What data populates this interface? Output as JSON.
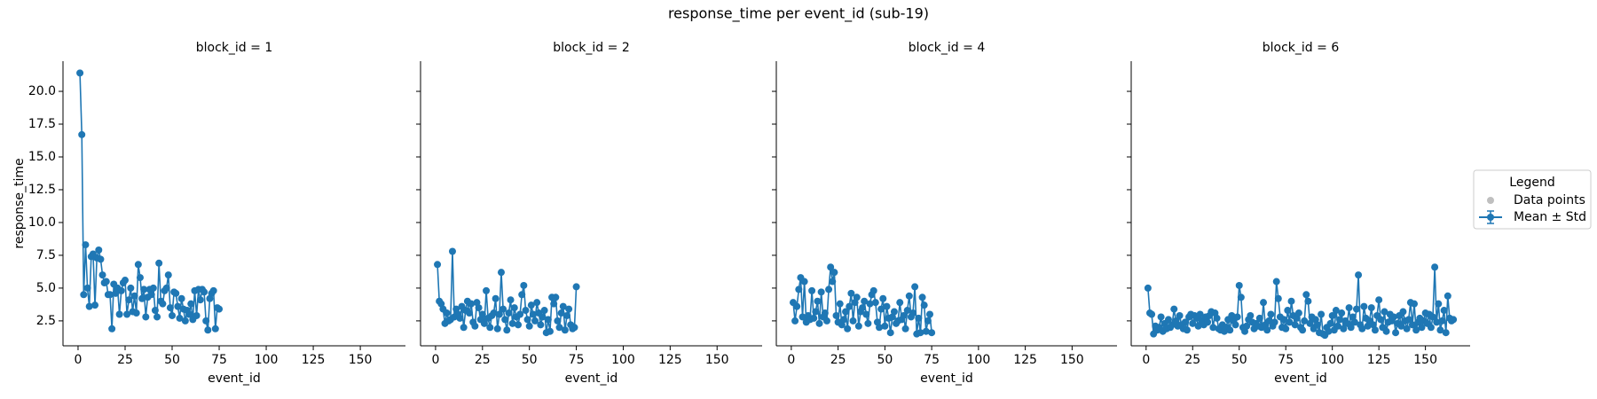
{
  "title": "response_time per event_id (sub-19)",
  "legend": {
    "title": "Legend",
    "entries": [
      {
        "name": "Data points",
        "color": "#bfbfbf"
      },
      {
        "name": "Mean ± Std",
        "color": "#1f77b4"
      }
    ]
  },
  "chart_data": [
    {
      "type": "line",
      "title": "block_id = 1",
      "xlabel": "event_id",
      "ylabel": "response_time",
      "color": "#1f77b4",
      "x": [
        1,
        2,
        3,
        4,
        5,
        6,
        7,
        8,
        9,
        10,
        11,
        12,
        13,
        14,
        15,
        16,
        17,
        18,
        19,
        20,
        21,
        22,
        23,
        24,
        25,
        26,
        27,
        28,
        29,
        30,
        31,
        32,
        33,
        34,
        35,
        36,
        37,
        38,
        39,
        40,
        41,
        42,
        43,
        44,
        45,
        46,
        47,
        48,
        49,
        50,
        51,
        52,
        53,
        54,
        55,
        56,
        57,
        58,
        59,
        60,
        61,
        62,
        63,
        64,
        65,
        66,
        67,
        68,
        69,
        70,
        71,
        72,
        73,
        74,
        75
      ],
      "values": [
        21.4,
        16.7,
        4.5,
        8.3,
        5.0,
        3.6,
        7.4,
        7.6,
        3.7,
        7.3,
        7.9,
        7.2,
        6.0,
        5.4,
        5.5,
        4.5,
        4.5,
        1.9,
        5.3,
        4.6,
        5.0,
        3.0,
        4.8,
        5.4,
        5.6,
        3.0,
        4.1,
        5.0,
        3.2,
        4.4,
        3.1,
        6.8,
        5.8,
        4.2,
        4.9,
        2.8,
        4.3,
        4.9,
        4.5,
        5.0,
        3.3,
        2.8,
        6.9,
        4.0,
        3.8,
        4.8,
        5.0,
        6.0,
        3.5,
        2.9,
        4.7,
        4.6,
        3.6,
        2.7,
        4.2,
        3.4,
        2.5,
        3.3,
        3.0,
        3.8,
        2.6,
        4.8,
        2.9,
        4.9,
        4.1,
        4.9,
        4.7,
        2.5,
        1.8,
        4.2,
        4.6,
        4.8,
        1.9,
        3.5,
        3.4
      ],
      "xlim": [
        -8,
        174
      ],
      "ylim": [
        0.6,
        22.3
      ],
      "xticks": [
        0,
        25,
        50,
        75,
        100,
        125,
        150
      ],
      "yticks": [
        2.5,
        {
          "value": 5,
          "label": "5.0"
        },
        7.5,
        {
          "value": 10,
          "label": "10.0"
        },
        12.5,
        {
          "value": 15,
          "label": "15.0"
        },
        17.5,
        {
          "value": 20,
          "label": "20.0"
        }
      ]
    },
    {
      "type": "line",
      "title": "block_id = 2",
      "xlabel": "event_id",
      "color": "#1f77b4",
      "x": [
        1,
        2,
        3,
        4,
        5,
        6,
        7,
        8,
        9,
        10,
        11,
        12,
        13,
        14,
        15,
        16,
        17,
        18,
        19,
        20,
        21,
        22,
        23,
        24,
        25,
        26,
        27,
        28,
        29,
        30,
        31,
        32,
        33,
        34,
        35,
        36,
        37,
        38,
        39,
        40,
        41,
        42,
        43,
        44,
        45,
        46,
        47,
        48,
        49,
        50,
        51,
        52,
        53,
        54,
        55,
        56,
        57,
        58,
        59,
        60,
        61,
        62,
        63,
        64,
        65,
        66,
        67,
        68,
        69,
        70,
        71,
        72,
        73,
        74,
        75
      ],
      "values": [
        6.8,
        4.0,
        3.8,
        3.4,
        2.3,
        3.1,
        2.5,
        2.6,
        7.8,
        2.8,
        3.4,
        3.0,
        2.7,
        3.6,
        2.0,
        3.3,
        4.0,
        3.1,
        3.8,
        2.4,
        2.1,
        3.9,
        3.5,
        2.6,
        3.0,
        2.3,
        4.8,
        2.7,
        2.0,
        2.9,
        3.1,
        4.2,
        1.9,
        3.0,
        6.2,
        3.4,
        2.6,
        1.8,
        3.1,
        4.1,
        2.3,
        3.5,
        2.8,
        2.2,
        3.0,
        4.5,
        5.2,
        3.3,
        2.6,
        2.1,
        3.7,
        3.0,
        2.5,
        3.9,
        3.1,
        2.2,
        2.8,
        3.3,
        1.6,
        2.6,
        1.7,
        4.3,
        3.8,
        4.3,
        2.5,
        2.0,
        3.1,
        3.6,
        1.8,
        2.9,
        3.4,
        2.2,
        1.9,
        2.0,
        5.1
      ],
      "xlim": [
        -8,
        174
      ],
      "ylim": [
        0.6,
        22.3
      ],
      "xticks": [
        0,
        25,
        50,
        75,
        100,
        125,
        150
      ],
      "yticks": [
        2.5,
        5,
        7.5,
        10,
        12.5,
        15,
        17.5,
        20
      ]
    },
    {
      "type": "line",
      "title": "block_id = 4",
      "xlabel": "event_id",
      "color": "#1f77b4",
      "x": [
        1,
        2,
        3,
        4,
        5,
        6,
        7,
        8,
        9,
        10,
        11,
        12,
        13,
        14,
        15,
        16,
        17,
        18,
        19,
        20,
        21,
        22,
        23,
        24,
        25,
        26,
        27,
        28,
        29,
        30,
        31,
        32,
        33,
        34,
        35,
        36,
        37,
        38,
        39,
        40,
        41,
        42,
        43,
        44,
        45,
        46,
        47,
        48,
        49,
        50,
        51,
        52,
        53,
        54,
        55,
        56,
        57,
        58,
        59,
        60,
        61,
        62,
        63,
        64,
        65,
        66,
        67,
        68,
        69,
        70,
        71,
        72,
        73,
        74,
        75
      ],
      "values": [
        3.9,
        2.5,
        3.6,
        4.9,
        5.8,
        2.8,
        5.5,
        2.4,
        2.9,
        2.6,
        4.8,
        2.7,
        3.2,
        4.0,
        2.3,
        4.7,
        2.8,
        3.1,
        2.5,
        4.9,
        6.6,
        5.5,
        6.2,
        2.9,
        2.4,
        3.8,
        2.2,
        2.6,
        3.2,
        1.9,
        3.6,
        4.6,
        2.5,
        3.9,
        4.3,
        2.1,
        3.2,
        3.5,
        4.0,
        3.0,
        2.3,
        3.8,
        4.5,
        4.8,
        3.9,
        2.4,
        2.0,
        3.4,
        4.2,
        2.1,
        3.6,
        2.7,
        1.6,
        2.8,
        3.2,
        2.3,
        2.5,
        3.9,
        2.6,
        2.9,
        1.9,
        3.3,
        4.4,
        2.8,
        3.1,
        5.1,
        1.5,
        2.7,
        1.6,
        4.3,
        3.7,
        1.7,
        2.5,
        3.0,
        1.6
      ],
      "xlim": [
        -8,
        174
      ],
      "ylim": [
        0.6,
        22.3
      ],
      "xticks": [
        0,
        25,
        50,
        75,
        100,
        125,
        150
      ],
      "yticks": [
        2.5,
        5,
        7.5,
        10,
        12.5,
        15,
        17.5,
        20
      ]
    },
    {
      "type": "line",
      "title": "block_id = 6",
      "xlabel": "event_id",
      "color": "#1f77b4",
      "x": [
        1,
        2,
        3,
        4,
        5,
        6,
        7,
        8,
        9,
        10,
        11,
        12,
        13,
        14,
        15,
        16,
        17,
        18,
        19,
        20,
        21,
        22,
        23,
        24,
        25,
        26,
        27,
        28,
        29,
        30,
        31,
        32,
        33,
        34,
        35,
        36,
        37,
        38,
        39,
        40,
        41,
        42,
        43,
        44,
        45,
        46,
        47,
        48,
        49,
        50,
        51,
        52,
        53,
        54,
        55,
        56,
        57,
        58,
        59,
        60,
        61,
        62,
        63,
        64,
        65,
        66,
        67,
        68,
        69,
        70,
        71,
        72,
        73,
        74,
        75,
        76,
        77,
        78,
        79,
        80,
        81,
        82,
        83,
        84,
        85,
        86,
        87,
        88,
        89,
        90,
        91,
        92,
        93,
        94,
        95,
        96,
        97,
        98,
        99,
        100,
        101,
        102,
        103,
        104,
        105,
        106,
        107,
        108,
        109,
        110,
        111,
        112,
        113,
        114,
        115,
        116,
        117,
        118,
        119,
        120,
        121,
        122,
        123,
        124,
        125,
        126,
        127,
        128,
        129,
        130,
        131,
        132,
        133,
        134,
        135,
        136,
        137,
        138,
        139,
        140,
        141,
        142,
        143,
        144,
        145,
        146,
        147,
        148,
        149,
        150,
        151,
        152,
        153,
        154,
        155,
        156,
        157,
        158,
        159,
        160,
        161,
        162,
        163,
        164,
        165
      ],
      "values": [
        5.0,
        3.1,
        3.0,
        1.5,
        2.1,
        1.8,
        2.0,
        2.8,
        1.7,
        2.3,
        1.9,
        2.6,
        2.0,
        2.2,
        3.4,
        2.5,
        2.1,
        2.9,
        2.2,
        1.9,
        2.4,
        1.8,
        2.8,
        3.0,
        2.3,
        2.9,
        2.7,
        2.1,
        3.0,
        2.5,
        2.2,
        2.8,
        2.4,
        2.9,
        3.2,
        2.0,
        3.1,
        2.7,
        1.9,
        1.8,
        2.2,
        1.7,
        2.0,
        2.6,
        1.8,
        2.9,
        2.5,
        2.2,
        2.8,
        5.2,
        4.3,
        2.0,
        1.7,
        2.1,
        2.6,
        2.9,
        2.4,
        1.9,
        2.3,
        2.1,
        2.7,
        2.0,
        3.9,
        2.2,
        1.8,
        2.5,
        3.0,
        2.1,
        2.4,
        5.5,
        4.2,
        2.8,
        2.0,
        2.6,
        1.9,
        3.3,
        2.4,
        4.0,
        2.9,
        2.2,
        2.7,
        3.1,
        2.0,
        1.8,
        2.5,
        4.5,
        4.0,
        2.3,
        2.8,
        1.9,
        2.6,
        2.2,
        1.6,
        3.0,
        1.5,
        1.4,
        2.0,
        1.7,
        2.3,
        2.9,
        1.8,
        3.3,
        2.1,
        2.6,
        3.1,
        1.9,
        2.5,
        2.3,
        3.5,
        2.0,
        2.8,
        2.4,
        3.4,
        6.0,
        2.2,
        1.9,
        3.6,
        2.7,
        2.1,
        2.5,
        3.5,
        2.2,
        1.8,
        2.9,
        4.1,
        2.6,
        2.0,
        3.2,
        1.7,
        2.4,
        3.0,
        2.5,
        2.8,
        1.6,
        2.3,
        2.9,
        2.1,
        3.2,
        2.5,
        1.9,
        2.6,
        3.9,
        2.2,
        3.8,
        1.8,
        2.4,
        2.7,
        2.0,
        2.5,
        3.1,
        2.3,
        3.0,
        2.0,
        2.8,
        6.6,
        2.4,
        3.8,
        1.8,
        2.5,
        3.3,
        1.6,
        4.4,
        2.7,
        2.5,
        2.6
      ],
      "xlim": [
        -8,
        174
      ],
      "ylim": [
        0.6,
        22.3
      ],
      "xticks": [
        0,
        25,
        50,
        75,
        100,
        125,
        150
      ],
      "yticks": [
        2.5,
        5,
        7.5,
        10,
        12.5,
        15,
        17.5,
        20
      ]
    }
  ]
}
